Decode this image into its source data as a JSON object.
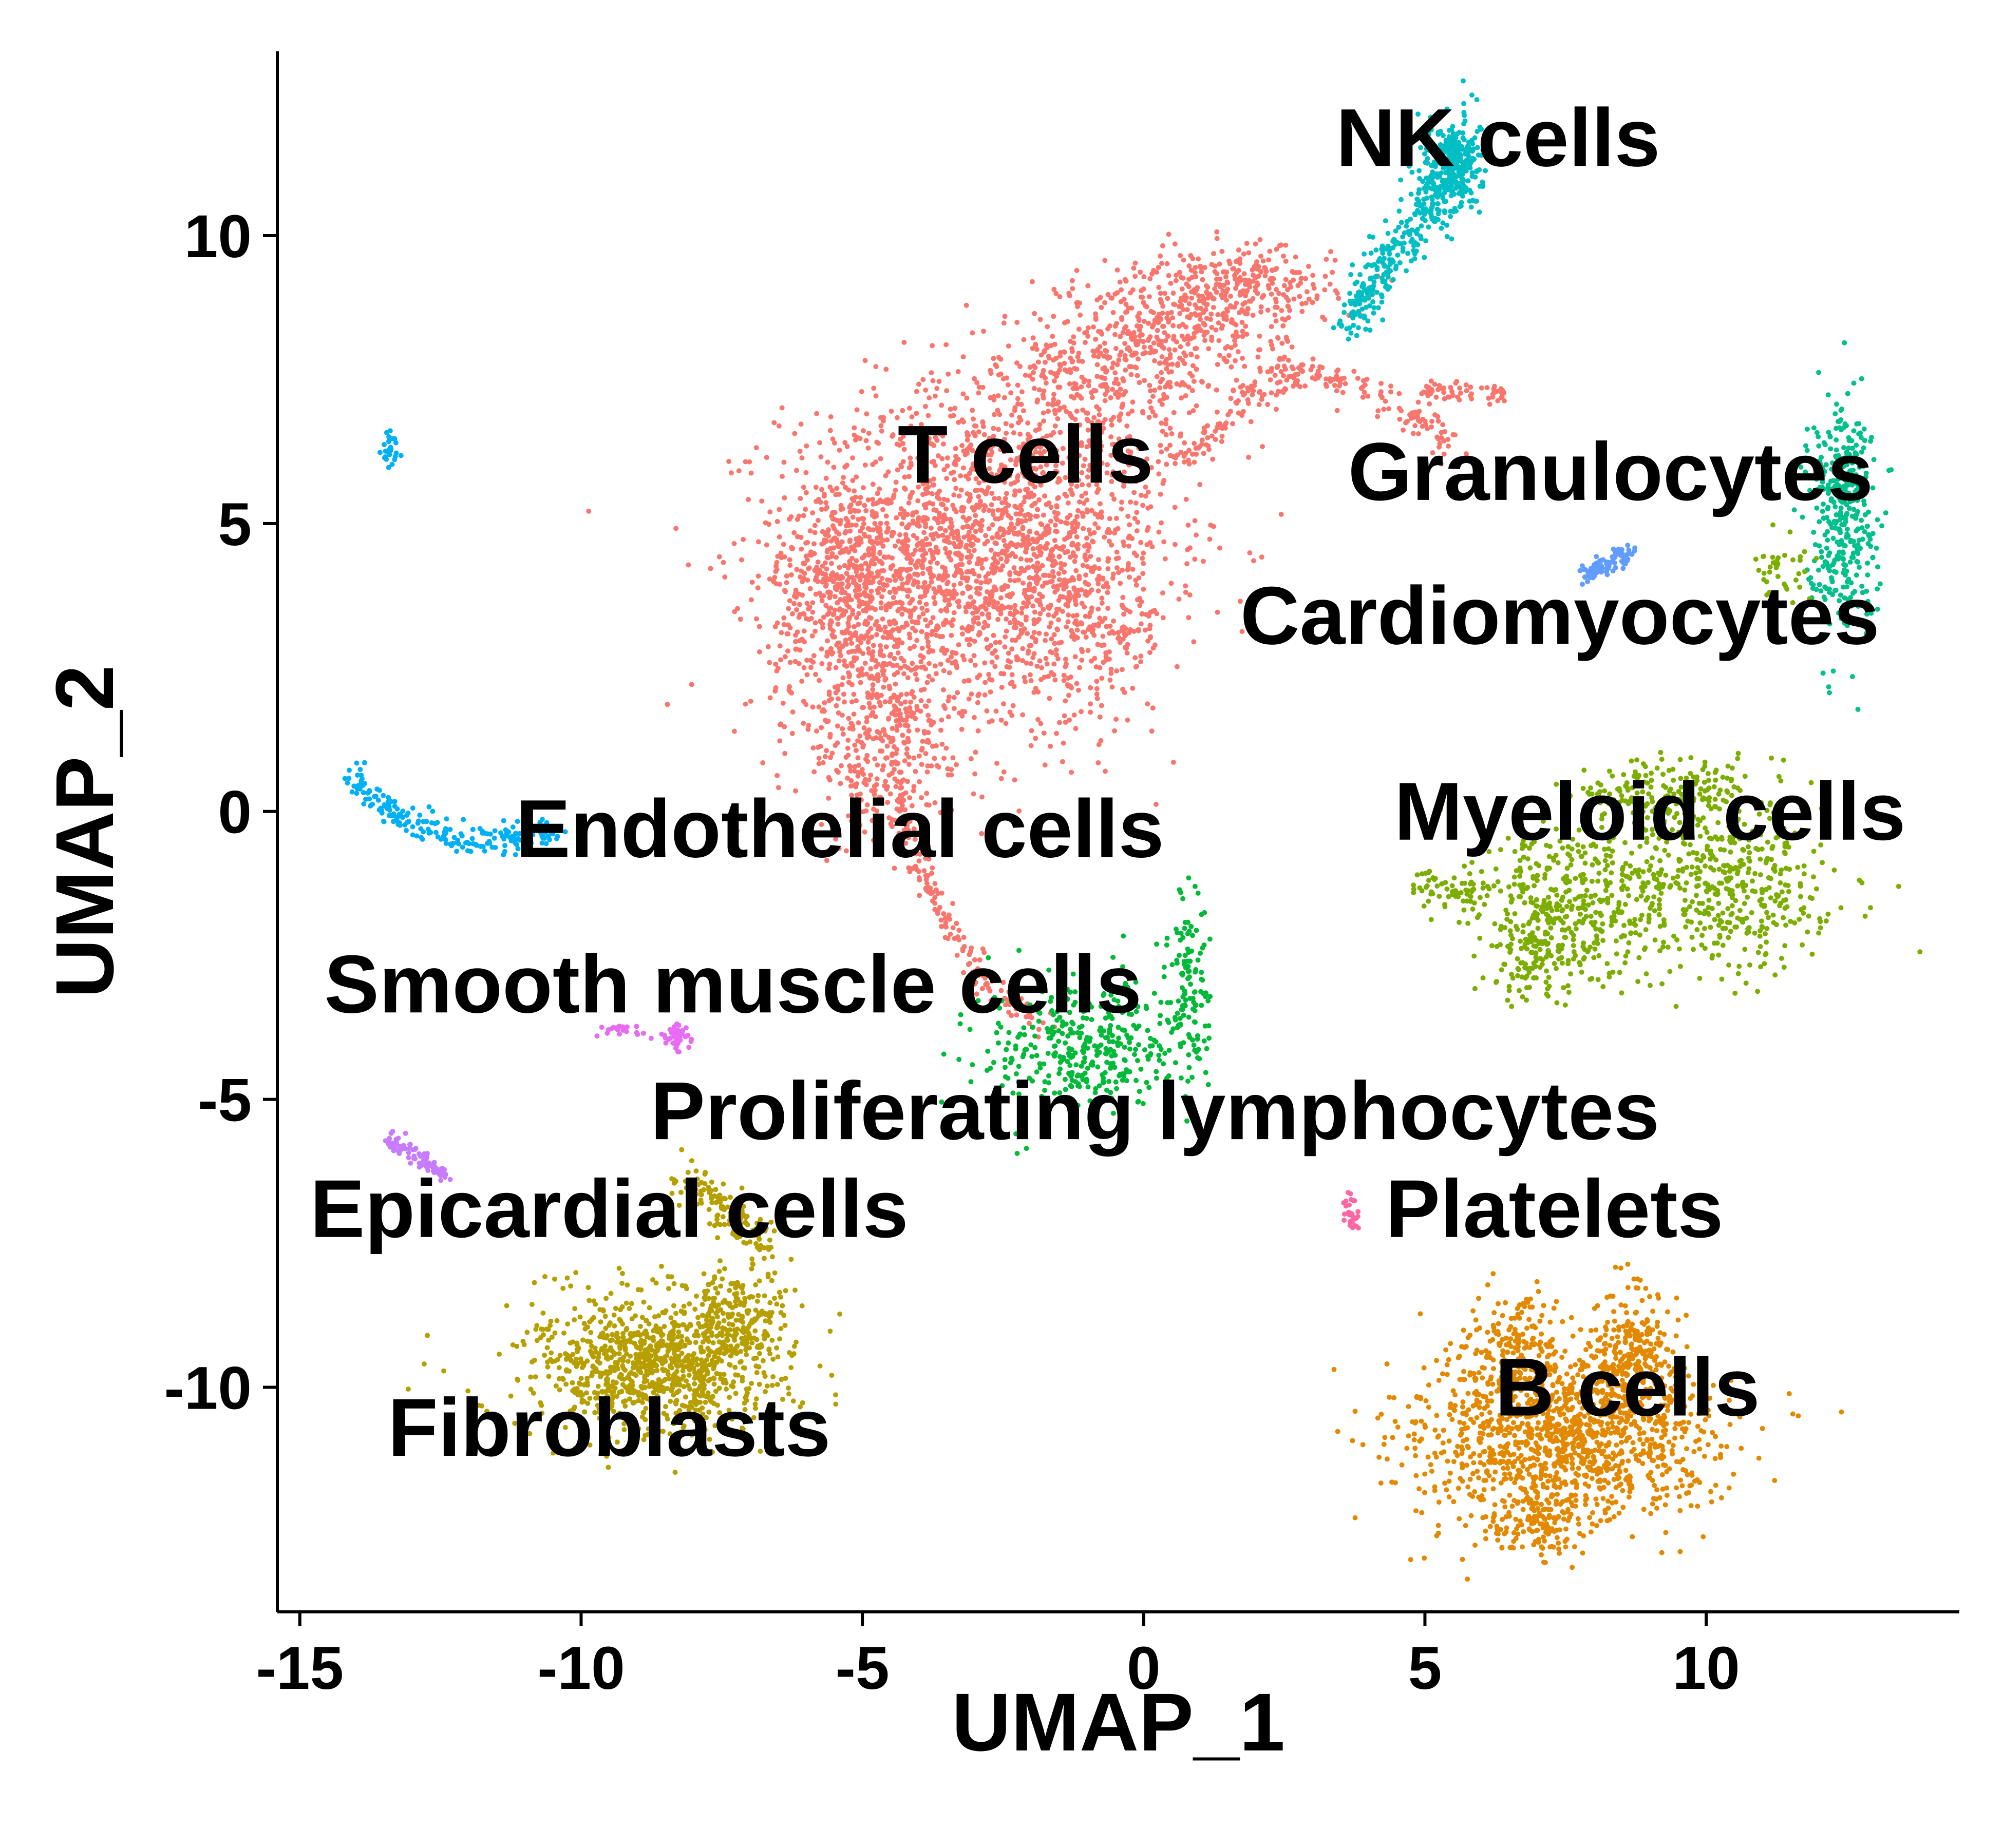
{
  "chart_data": {
    "type": "scatter",
    "title": "",
    "xlabel": "UMAP_1",
    "ylabel": "UMAP_2",
    "xlim": [
      -15.4,
      14.5
    ],
    "ylim": [
      -13.9,
      13.2
    ],
    "x_ticks": [
      {
        "value": -15,
        "label": "-15"
      },
      {
        "value": -10,
        "label": "-10"
      },
      {
        "value": -5,
        "label": "-5"
      },
      {
        "value": 0,
        "label": "0"
      },
      {
        "value": 5,
        "label": "5"
      },
      {
        "value": 10,
        "label": "10"
      }
    ],
    "y_ticks": [
      {
        "value": 10,
        "label": "10"
      },
      {
        "value": 5,
        "label": "5"
      },
      {
        "value": 0,
        "label": "0"
      },
      {
        "value": -5,
        "label": "-5"
      },
      {
        "value": -10,
        "label": "-10"
      }
    ],
    "grid": false,
    "legend": "none",
    "clusters": [
      {
        "name": "T cells",
        "color": "#F8766D",
        "label_at": [
          -2.1,
          6.2
        ]
      },
      {
        "name": "NK cells",
        "color": "#00BFC4",
        "label_at": [
          6.3,
          11.7
        ]
      },
      {
        "name": "Granulocytes",
        "color": "#00C08B",
        "label_at": [
          8.3,
          5.9
        ]
      },
      {
        "name": "Cardiomyocytes",
        "color": "#619CFF",
        "label_at": [
          7.4,
          3.4
        ]
      },
      {
        "name": "Myeloid cells",
        "color": "#7CAE00",
        "label_at": [
          9.0,
          0.0
        ]
      },
      {
        "name": "Endothelial cells",
        "color": "#00B0F6",
        "label_at": [
          -5.4,
          -0.3
        ]
      },
      {
        "name": "Smooth muscle cells",
        "color": "#E76BF3",
        "label_at": [
          -7.3,
          -3.0
        ]
      },
      {
        "name": "Proliferating lymphocytes",
        "color": "#00BA38",
        "label_at": [
          0.2,
          -5.2
        ]
      },
      {
        "name": "Epicardial cells",
        "color": "#C77CFF",
        "label_at": [
          -9.5,
          -6.9
        ]
      },
      {
        "name": "Platelets",
        "color": "#FF67A4",
        "label_at": [
          7.3,
          -6.9
        ]
      },
      {
        "name": "B cells",
        "color": "#E38900",
        "label_at": [
          8.6,
          -10.0
        ]
      },
      {
        "name": "Fibroblasts",
        "color": "#B79F00",
        "label_at": [
          -9.5,
          -10.7
        ]
      }
    ]
  }
}
